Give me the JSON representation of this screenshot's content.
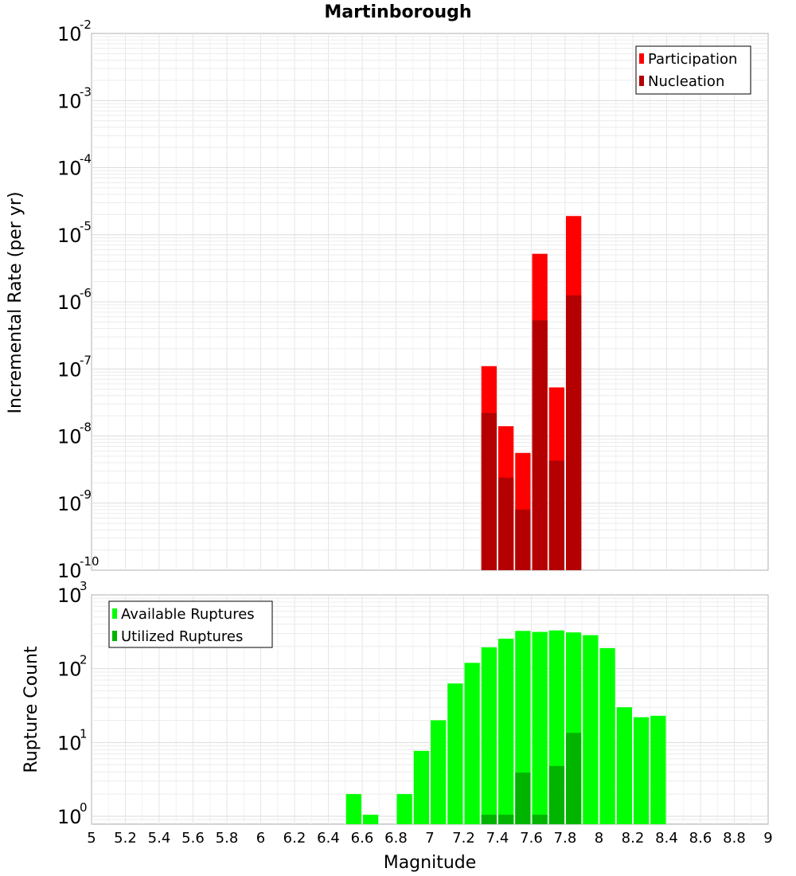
{
  "chart_data": [
    {
      "type": "bar",
      "title": "Martinborough",
      "xlabel": "",
      "ylabel": "Incremental Rate (per yr)",
      "yscale": "log",
      "ylim": [
        1e-10,
        0.01
      ],
      "xlim": [
        5,
        9
      ],
      "grid": true,
      "legend_position": "top-right",
      "y_ticks": [
        {
          "base": "10",
          "exp": "-2"
        },
        {
          "base": "10",
          "exp": "-3"
        },
        {
          "base": "10",
          "exp": "-4"
        },
        {
          "base": "10",
          "exp": "-5"
        },
        {
          "base": "10",
          "exp": "-6"
        },
        {
          "base": "10",
          "exp": "-7"
        },
        {
          "base": "10",
          "exp": "-8"
        },
        {
          "base": "10",
          "exp": "-9"
        },
        {
          "base": "10",
          "exp": "-10"
        }
      ],
      "x": [
        7.35,
        7.45,
        7.55,
        7.65,
        7.75,
        7.85
      ],
      "series": [
        {
          "name": "Participation",
          "color": "#ff0000",
          "values": [
            1.1e-07,
            1.4e-08,
            5.6e-09,
            5.2e-06,
            5.3e-08,
            1.9e-05
          ]
        },
        {
          "name": "Nucleation",
          "color": "#b40000",
          "values": [
            2.2e-08,
            2.4e-09,
            8e-10,
            5.3e-07,
            4.3e-09,
            1.25e-06
          ]
        }
      ]
    },
    {
      "type": "bar",
      "title": "",
      "xlabel": "Magnitude",
      "ylabel": "Rupture Count",
      "yscale": "log",
      "ylim": [
        0.78,
        1000
      ],
      "xlim": [
        5,
        9
      ],
      "grid": true,
      "legend_position": "top-left",
      "y_ticks": [
        {
          "base": "10",
          "exp": "3"
        },
        {
          "base": "10",
          "exp": "2"
        },
        {
          "base": "10",
          "exp": "1"
        },
        {
          "base": "10",
          "exp": "0"
        }
      ],
      "x_ticks": [
        "5",
        "5.2",
        "5.4",
        "5.6",
        "5.8",
        "6",
        "6.2",
        "6.4",
        "6.6",
        "6.8",
        "7",
        "7.2",
        "7.4",
        "7.6",
        "7.8",
        "8",
        "8.2",
        "8.4",
        "8.6",
        "8.8",
        "9"
      ],
      "x": [
        6.55,
        6.65,
        6.85,
        6.95,
        7.05,
        7.15,
        7.25,
        7.35,
        7.45,
        7.55,
        7.65,
        7.75,
        7.85,
        7.95,
        8.05,
        8.15,
        8.25,
        8.35
      ],
      "series": [
        {
          "name": "Available Ruptures",
          "color": "#00ff00",
          "values": [
            2,
            1.05,
            2,
            7.7,
            20,
            63,
            120,
            195,
            255,
            325,
            315,
            330,
            310,
            285,
            190,
            30,
            22,
            23
          ]
        },
        {
          "name": "Utilized Ruptures",
          "color": "#00b400",
          "values": [
            0,
            0,
            0,
            0,
            0,
            0,
            0,
            1.05,
            1.05,
            3.9,
            1.05,
            4.8,
            13.5,
            0,
            0,
            0,
            0,
            0
          ]
        }
      ]
    }
  ]
}
